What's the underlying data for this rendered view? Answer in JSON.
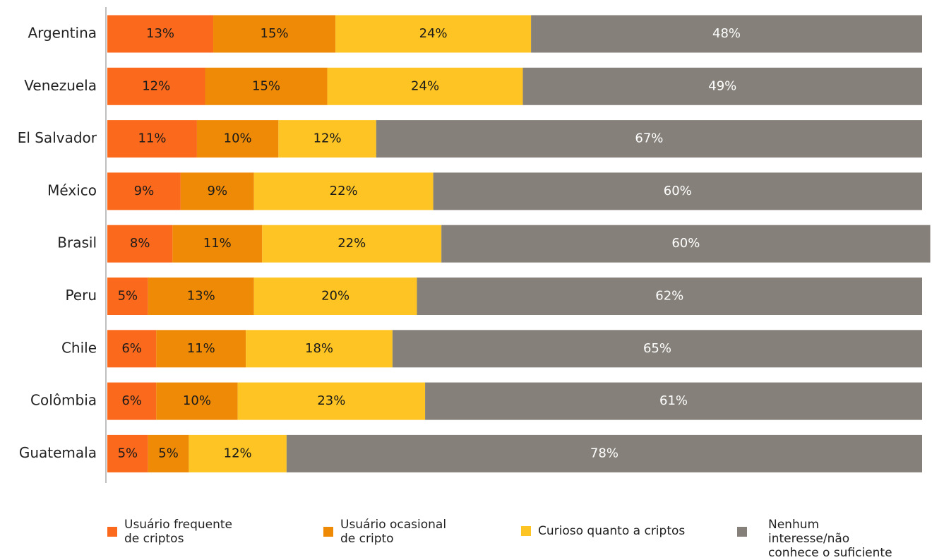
{
  "chart_data": {
    "type": "stacked-bar-horizontal",
    "categories": [
      "Argentina",
      "Venezuela",
      "El Salvador",
      "México",
      "Brasil",
      "Peru",
      "Chile",
      "Colômbia",
      "Guatemala"
    ],
    "xlim": [
      0,
      100
    ],
    "legend": "bottom",
    "series": [
      {
        "name": "Usuário frequente de criptos",
        "color": "#fb6a1c",
        "label_color": "#1a1a1a",
        "values": [
          13,
          12,
          11,
          9,
          8,
          5,
          6,
          6,
          5
        ],
        "value_labels": [
          "13%",
          "12%",
          "11%",
          "9%",
          "8%",
          "5%",
          "6%",
          "6%",
          "5%"
        ]
      },
      {
        "name": "Usuário ocasional de cripto",
        "color": "#ef8a06",
        "label_color": "#1a1a1a",
        "values": [
          15,
          15,
          10,
          9,
          11,
          13,
          11,
          10,
          5
        ],
        "value_labels": [
          "15%",
          "15%",
          "10%",
          "9%",
          "11%",
          "13%",
          "11%",
          "10%",
          "5%"
        ]
      },
      {
        "name": "Curioso quanto a criptos",
        "color": "#fdc423",
        "label_color": "#1a1a1a",
        "values": [
          24,
          24,
          12,
          22,
          22,
          20,
          18,
          23,
          12
        ],
        "value_labels": [
          "24%",
          "24%",
          "12%",
          "22%",
          "22%",
          "20%",
          "18%",
          "23%",
          "12%"
        ]
      },
      {
        "name": "Nenhum interesse/não conhece o suficiente",
        "color": "#858079",
        "label_color": "#ffffff",
        "values": [
          48,
          49,
          67,
          60,
          60,
          62,
          65,
          61,
          78
        ],
        "value_labels": [
          "48%",
          "49%",
          "67%",
          "60%",
          "60%",
          "62%",
          "65%",
          "61%",
          "78%"
        ]
      }
    ]
  }
}
